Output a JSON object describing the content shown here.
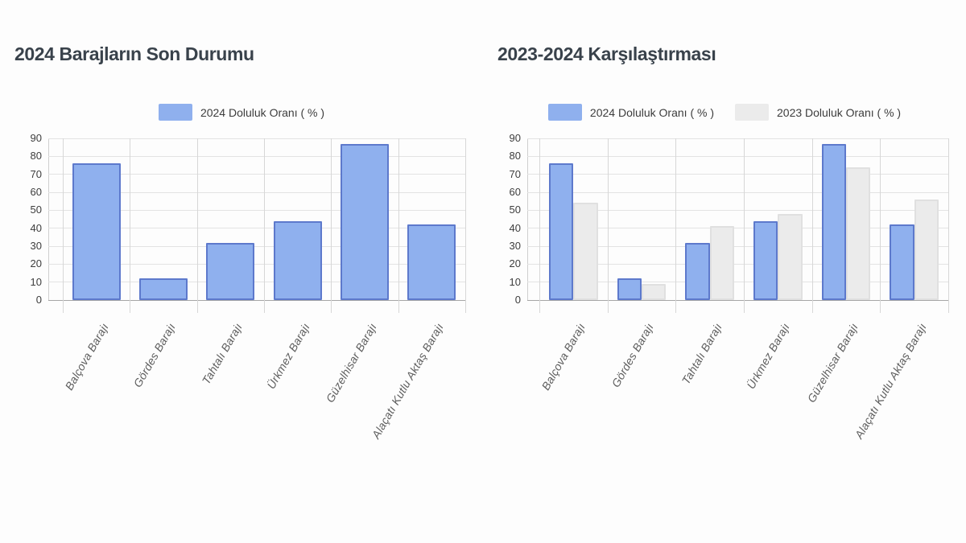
{
  "page": {
    "background": "#fdfdfd"
  },
  "styles": {
    "title_color": "#39424b",
    "legend_text_color": "#3c3c3c",
    "axis_label_color": "#3d3d3d",
    "category_label_color": "#5e5e5e",
    "gridline_color": "#e3e3e3",
    "vertical_gridline_color": "#d7d7d7",
    "axis_line_color": "#cfcfcf",
    "baseline_color": "#a6a6a6",
    "series_2024_fill": "#8fb0ee",
    "series_2024_border": "#5d79cc",
    "series_2023_fill": "#ebebeb",
    "series_2023_border": "#e0e0e0"
  },
  "chart_data": [
    {
      "type": "bar",
      "title": "2024 Barajların Son Durumu",
      "legend_position": "top",
      "grid": true,
      "ylim": [
        0,
        90
      ],
      "ytick_step": 10,
      "xlabel": "",
      "ylabel": "",
      "categories": [
        "Balçova Barajı",
        "Gördes Barajı",
        "Tahtalı Barajı",
        "Ürkmez Barajı",
        "Güzelhisar Barajı",
        "Alaçatı Kutlu Aktaş Barajı"
      ],
      "series": [
        {
          "name": "2024 Doluluk Oranı ( % )",
          "fill": "#8fb0ee",
          "border": "#5d79cc",
          "values": [
            76,
            12,
            32,
            44,
            87,
            42
          ]
        }
      ]
    },
    {
      "type": "bar",
      "title": "2023-2024 Karşılaştırması",
      "legend_position": "top",
      "grid": true,
      "ylim": [
        0,
        90
      ],
      "ytick_step": 10,
      "xlabel": "",
      "ylabel": "",
      "categories": [
        "Balçova Barajı",
        "Gördes Barajı",
        "Tahtalı Barajı",
        "Ürkmez Barajı",
        "Güzelhisar Barajı",
        "Alaçatı Kutlu Aktaş Barajı"
      ],
      "series": [
        {
          "name": "2024 Doluluk Oranı ( % )",
          "fill": "#8fb0ee",
          "border": "#5d79cc",
          "values": [
            76,
            12,
            32,
            44,
            87,
            42
          ]
        },
        {
          "name": "2023 Doluluk Oranı ( % )",
          "fill": "#ebebeb",
          "border": "#e0e0e0",
          "values": [
            54,
            9,
            41,
            48,
            74,
            56
          ]
        }
      ]
    }
  ]
}
